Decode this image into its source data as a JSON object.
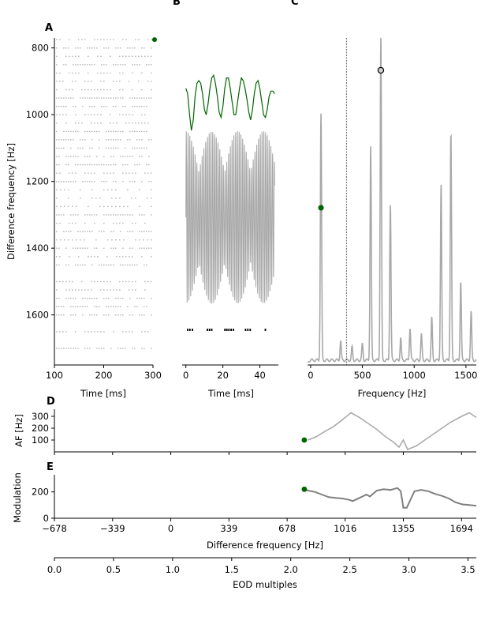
{
  "colors": {
    "trace": "#a8a8a8",
    "spike": "#b8b8b8",
    "green": "#006400",
    "axis": "#000000",
    "modulation": "#808080",
    "af": "#aaaaaa"
  },
  "chart_data": [
    {
      "id": "A",
      "panel_label": "A",
      "type": "scatter",
      "xlabel": "Time [ms]",
      "ylabel": "Difference frequency [Hz]",
      "xlim": [
        100,
        300
      ],
      "ylim": [
        1750,
        770
      ],
      "xticks": [
        100,
        200,
        300
      ],
      "yticks": [
        800,
        1000,
        1200,
        1400,
        1600
      ],
      "rows": [
        775,
        800,
        825,
        850,
        875,
        900,
        925,
        950,
        975,
        1000,
        1025,
        1050,
        1075,
        1100,
        1125,
        1150,
        1175,
        1200,
        1225,
        1250,
        1275,
        1300,
        1325,
        1350,
        1375,
        1400,
        1425,
        1450,
        1500,
        1525,
        1550,
        1575,
        1600,
        1650,
        1700
      ],
      "marker": {
        "x": 305,
        "y": 775
      }
    },
    {
      "id": "B",
      "panel_label": "B",
      "type": "line",
      "xlabel": "Time [ms]",
      "xlim": [
        -2,
        50
      ],
      "xticks": [
        0,
        20,
        40
      ],
      "envelope": [
        [
          0,
          0.88
        ],
        [
          1,
          0.86
        ],
        [
          2,
          0.78
        ],
        [
          3,
          0.72
        ],
        [
          4,
          0.76
        ],
        [
          5,
          0.85
        ],
        [
          6,
          0.9
        ],
        [
          7,
          0.91
        ],
        [
          8,
          0.9
        ],
        [
          9,
          0.86
        ],
        [
          10,
          0.8
        ],
        [
          11,
          0.78
        ],
        [
          12,
          0.82
        ],
        [
          13,
          0.88
        ],
        [
          14,
          0.92
        ],
        [
          15,
          0.93
        ],
        [
          16,
          0.9
        ],
        [
          17,
          0.85
        ],
        [
          18,
          0.79
        ],
        [
          19,
          0.77
        ],
        [
          20,
          0.81
        ],
        [
          21,
          0.88
        ],
        [
          22,
          0.92
        ],
        [
          23,
          0.92
        ],
        [
          24,
          0.88
        ],
        [
          25,
          0.83
        ],
        [
          26,
          0.78
        ],
        [
          27,
          0.78
        ],
        [
          28,
          0.83
        ],
        [
          29,
          0.88
        ],
        [
          30,
          0.92
        ],
        [
          31,
          0.91
        ],
        [
          32,
          0.88
        ],
        [
          33,
          0.84
        ],
        [
          34,
          0.79
        ],
        [
          35,
          0.76
        ],
        [
          36,
          0.8
        ],
        [
          37,
          0.86
        ],
        [
          38,
          0.9
        ],
        [
          39,
          0.91
        ],
        [
          40,
          0.88
        ],
        [
          41,
          0.83
        ],
        [
          42,
          0.78
        ],
        [
          43,
          0.77
        ],
        [
          44,
          0.8
        ],
        [
          45,
          0.85
        ],
        [
          46,
          0.87
        ],
        [
          47,
          0.87
        ],
        [
          48,
          0.86
        ]
      ],
      "spike_times": [
        0.6,
        1.8,
        3.2,
        11.3,
        12.4,
        13.6,
        20.7,
        21.8,
        22.9,
        24.1,
        25.3,
        31.9,
        33.1,
        34.4,
        42.6
      ]
    },
    {
      "id": "C",
      "panel_label": "C",
      "type": "line",
      "xlabel": "Frequency [Hz]",
      "xlim": [
        -30,
        1600
      ],
      "xticks": [
        0,
        500,
        1000,
        1500
      ],
      "vline_x": 345,
      "peaks": [
        [
          100,
          0.76
        ],
        [
          290,
          0.06
        ],
        [
          400,
          0.04
        ],
        [
          500,
          0.05
        ],
        [
          580,
          0.66
        ],
        [
          678,
          1.0
        ],
        [
          770,
          0.48
        ],
        [
          870,
          0.07
        ],
        [
          960,
          0.1
        ],
        [
          1070,
          0.08
        ],
        [
          1170,
          0.13
        ],
        [
          1260,
          0.54
        ],
        [
          1355,
          0.7
        ],
        [
          1450,
          0.24
        ],
        [
          1550,
          0.15
        ]
      ],
      "green_marker": {
        "x": 100,
        "y": 0.47
      },
      "circle_marker": {
        "x": 678,
        "y": 0.88
      }
    },
    {
      "id": "D",
      "panel_label": "D",
      "type": "line",
      "ylabel": "AF [Hz]",
      "xlim": [
        -678,
        1780
      ],
      "ylim": [
        0,
        360
      ],
      "yticks": [
        100,
        200,
        300
      ],
      "x": [
        800,
        850,
        900,
        950,
        1016,
        1050,
        1100,
        1150,
        1200,
        1250,
        1300,
        1330,
        1355,
        1380,
        1430,
        1480,
        1530,
        1580,
        1630,
        1694,
        1740,
        1780
      ],
      "y": [
        100,
        130,
        175,
        215,
        290,
        330,
        290,
        240,
        190,
        130,
        80,
        40,
        100,
        20,
        50,
        100,
        150,
        200,
        250,
        300,
        330,
        290
      ],
      "green_marker": {
        "x": 778,
        "y": 100
      }
    },
    {
      "id": "E",
      "panel_label": "E",
      "type": "line",
      "ylabel": "Modulation",
      "xlabel": "Difference frequency [Hz]",
      "xlim": [
        -678,
        1780
      ],
      "ylim": [
        0,
        330
      ],
      "xticks": [
        -678,
        -339,
        0,
        339,
        678,
        1016,
        1355,
        1694
      ],
      "xticklabels": [
        "−678",
        "−339",
        "0",
        "339",
        "678",
        "1016",
        "1355",
        "1694"
      ],
      "yticks": [
        0,
        200
      ],
      "x": [
        778,
        800,
        840,
        880,
        920,
        960,
        1000,
        1040,
        1060,
        1100,
        1140,
        1160,
        1200,
        1240,
        1280,
        1320,
        1340,
        1355,
        1375,
        1420,
        1460,
        1500,
        1540,
        1580,
        1620,
        1660,
        1700,
        1740,
        1780
      ],
      "y": [
        220,
        210,
        200,
        180,
        160,
        155,
        150,
        140,
        130,
        155,
        180,
        165,
        210,
        220,
        215,
        230,
        205,
        80,
        80,
        205,
        215,
        205,
        185,
        170,
        150,
        120,
        105,
        100,
        95
      ],
      "green_marker": {
        "x": 778,
        "y": 220
      }
    },
    {
      "id": "bottom",
      "type": "line",
      "xlabel": "EOD multiples",
      "xlim": [
        0,
        3.57
      ],
      "xticks": [
        0,
        0.5,
        1,
        1.5,
        2,
        2.5,
        3,
        3.5
      ],
      "xticklabels": [
        "0.0",
        "0.5",
        "1.0",
        "1.5",
        "2.0",
        "2.5",
        "3.0",
        "3.5"
      ]
    }
  ]
}
